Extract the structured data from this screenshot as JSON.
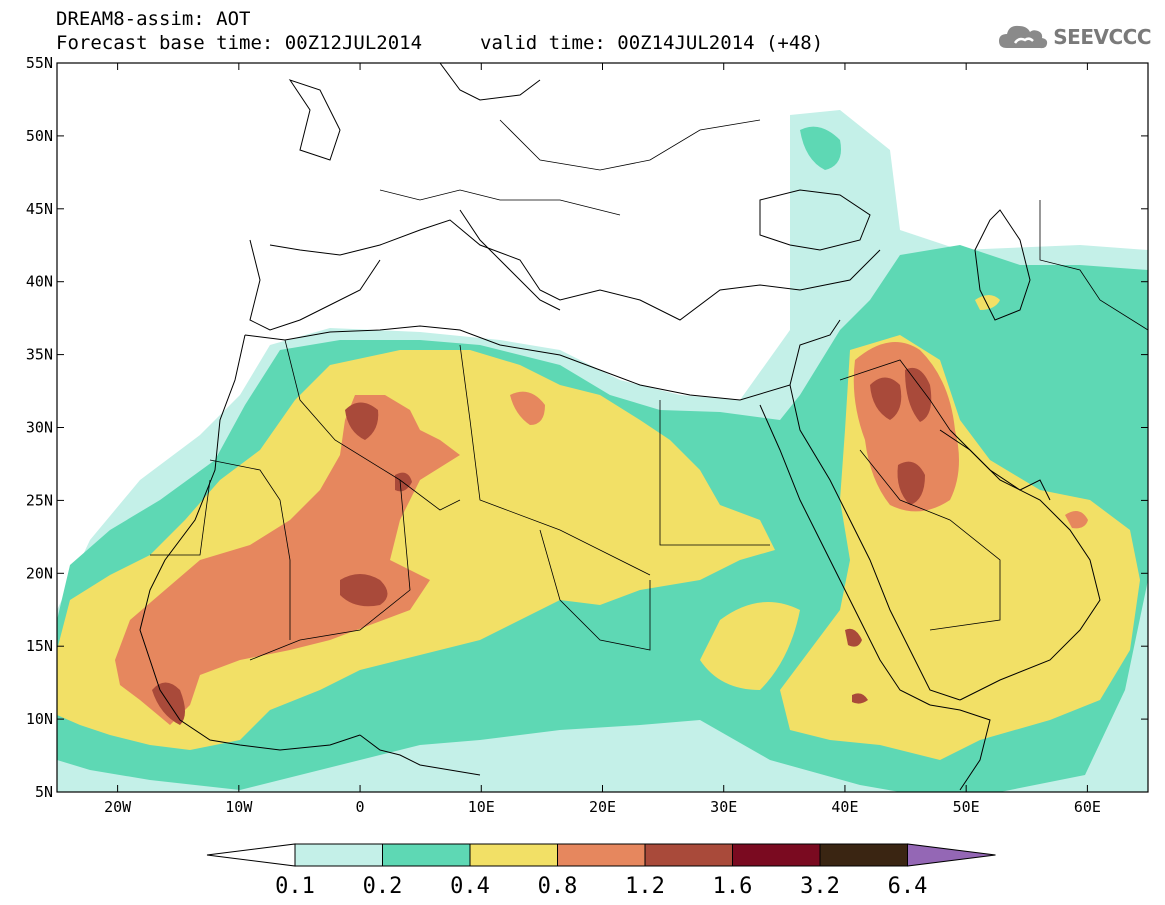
{
  "title": {
    "line1": "DREAM8-assim: AOT",
    "line2": "Forecast base time: 00Z12JUL2014",
    "valid": "valid time: 00Z14JUL2014 (+48)"
  },
  "logo": {
    "text": "SEEVCCC",
    "icon": "cloud-icon"
  },
  "axes": {
    "lat_labels": [
      "55N",
      "50N",
      "45N",
      "40N",
      "35N",
      "30N",
      "25N",
      "20N",
      "15N",
      "10N",
      "5N"
    ],
    "lon_labels": [
      "20W",
      "10W",
      "0",
      "10E",
      "20E",
      "30E",
      "40E",
      "50E",
      "60E"
    ],
    "lon_range": [
      -25,
      65
    ],
    "lat_range": [
      5,
      55
    ]
  },
  "legend": {
    "levels": [
      "0.1",
      "0.2",
      "0.4",
      "0.8",
      "1.2",
      "1.6",
      "3.2",
      "6.4"
    ],
    "colors": [
      "#ffffff",
      "#c4f0e8",
      "#5ed8b4",
      "#f2e066",
      "#e6875e",
      "#a94a3a",
      "#7a0a20",
      "#3a2512",
      "#9467b5"
    ]
  },
  "colors": {
    "c1": "#c4f0e8",
    "c2": "#5ed8b4",
    "c3": "#f2e066",
    "c4": "#e6875e",
    "c5": "#a94a3a",
    "c6": "#7a0a20"
  }
}
